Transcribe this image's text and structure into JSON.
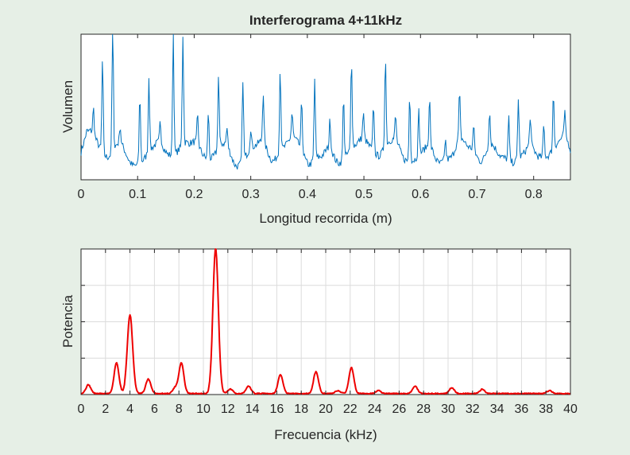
{
  "chart_data": [
    {
      "type": "line",
      "title": "Interferograma 4+11kHz",
      "xlabel": "Longitud recorrida (m)",
      "ylabel": "Volumen",
      "xlim": [
        0,
        0.865
      ],
      "ylim": [
        0,
        1
      ],
      "xticks": [
        0,
        0.1,
        0.2,
        0.3,
        0.4,
        0.5,
        0.6,
        0.7,
        0.8
      ],
      "xtick_labels": [
        "0",
        "0.1",
        "0.2",
        "0.3",
        "0.4",
        "0.5",
        "0.6",
        "0.7",
        "0.8"
      ],
      "grid": false,
      "color": "#0072bd",
      "peaks": [
        [
          0.01,
          0.1
        ],
        [
          0.022,
          0.26
        ],
        [
          0.038,
          0.72
        ],
        [
          0.056,
          1.0
        ],
        [
          0.069,
          0.2
        ],
        [
          0.104,
          0.55
        ],
        [
          0.12,
          0.6
        ],
        [
          0.14,
          0.22
        ],
        [
          0.163,
          0.93
        ],
        [
          0.18,
          0.83
        ],
        [
          0.206,
          0.28
        ],
        [
          0.225,
          0.4
        ],
        [
          0.243,
          0.58
        ],
        [
          0.258,
          0.2
        ],
        [
          0.286,
          0.64
        ],
        [
          0.3,
          0.22
        ],
        [
          0.322,
          0.42
        ],
        [
          0.352,
          0.65
        ],
        [
          0.373,
          0.25
        ],
        [
          0.39,
          0.42
        ],
        [
          0.413,
          0.63
        ],
        [
          0.44,
          0.28
        ],
        [
          0.464,
          0.52
        ],
        [
          0.478,
          0.7
        ],
        [
          0.499,
          0.25
        ],
        [
          0.517,
          0.4
        ],
        [
          0.538,
          0.7
        ],
        [
          0.556,
          0.25
        ],
        [
          0.581,
          0.54
        ],
        [
          0.597,
          0.38
        ],
        [
          0.616,
          0.42
        ],
        [
          0.644,
          0.22
        ],
        [
          0.669,
          0.4
        ],
        [
          0.694,
          0.25
        ],
        [
          0.722,
          0.32
        ],
        [
          0.756,
          0.37
        ],
        [
          0.773,
          0.5
        ],
        [
          0.794,
          0.28
        ],
        [
          0.818,
          0.3
        ],
        [
          0.835,
          0.46
        ],
        [
          0.855,
          0.25
        ]
      ]
    },
    {
      "type": "line",
      "title": "",
      "xlabel": "Frecuencia (kHz)",
      "ylabel": "Potencia",
      "xlim": [
        0,
        40
      ],
      "ylim": [
        0,
        1
      ],
      "xticks": [
        0,
        2,
        4,
        6,
        8,
        10,
        12,
        14,
        16,
        18,
        20,
        22,
        24,
        26,
        28,
        30,
        32,
        34,
        36,
        38,
        40
      ],
      "grid": true,
      "color": "#ee0000",
      "peaks": [
        [
          0.6,
          0.06
        ],
        [
          2.9,
          0.21
        ],
        [
          4.0,
          0.54
        ],
        [
          5.5,
          0.1
        ],
        [
          7.7,
          0.04
        ],
        [
          8.2,
          0.21
        ],
        [
          11.0,
          1.0
        ],
        [
          12.2,
          0.03
        ],
        [
          13.7,
          0.05
        ],
        [
          16.3,
          0.13
        ],
        [
          19.2,
          0.15
        ],
        [
          21.0,
          0.02
        ],
        [
          22.1,
          0.18
        ],
        [
          24.3,
          0.02
        ],
        [
          27.3,
          0.05
        ],
        [
          30.3,
          0.04
        ],
        [
          32.8,
          0.03
        ],
        [
          38.3,
          0.02
        ]
      ]
    }
  ]
}
